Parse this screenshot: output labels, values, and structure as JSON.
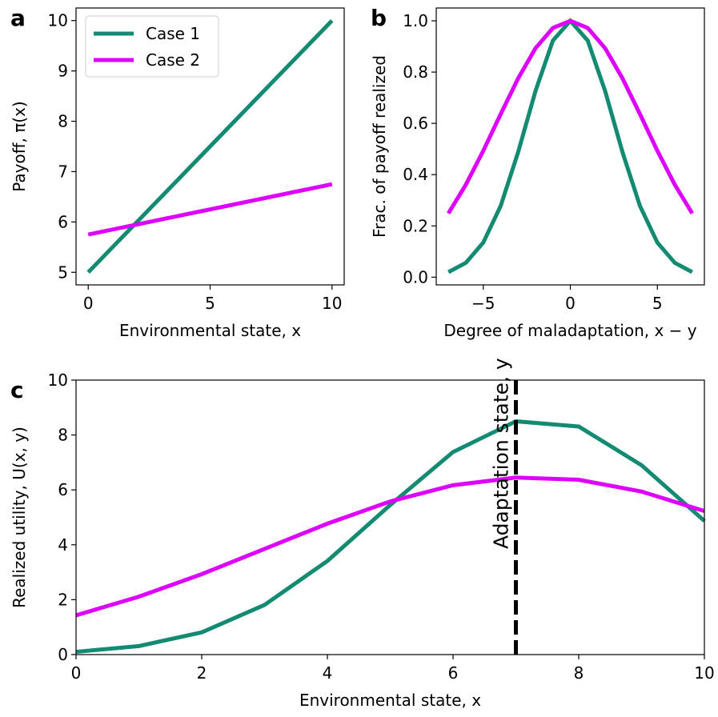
{
  "chart_data": [
    {
      "type": "line",
      "panel_label": "a",
      "xlabel": "Environmental state, x",
      "ylabel": "Payoff, π(x)",
      "x": [
        0,
        10
      ],
      "series": [
        {
          "name": "Case 1",
          "color": "#138a72",
          "values": [
            5,
            10
          ]
        },
        {
          "name": "Case 2",
          "color": "#dd00ff",
          "values": [
            5.75,
            6.75
          ]
        }
      ],
      "xlim": [
        -0.5,
        10.5
      ],
      "ylim": [
        4.75,
        10.25
      ],
      "xticks": [
        0,
        5,
        10
      ],
      "yticks": [
        5,
        6,
        7,
        8,
        9,
        10
      ],
      "legend": "upper left"
    },
    {
      "type": "line",
      "panel_label": "b",
      "xlabel": "Degree of maladaptation, x − y",
      "ylabel": "Frac. of payoff realized",
      "x": [
        -7,
        -6,
        -5,
        -4,
        -3,
        -2,
        -1,
        0,
        1,
        2,
        3,
        4,
        5,
        6,
        7
      ],
      "series": [
        {
          "color": "#138a72",
          "values": [
            0.02,
            0.056,
            0.135,
            0.278,
            0.487,
            0.726,
            0.923,
            1,
            0.923,
            0.726,
            0.487,
            0.278,
            0.135,
            0.056,
            0.02
          ]
        },
        {
          "color": "#dd00ff",
          "values": [
            0.249,
            0.361,
            0.493,
            0.636,
            0.775,
            0.893,
            0.972,
            1,
            0.972,
            0.893,
            0.775,
            0.636,
            0.493,
            0.361,
            0.249
          ]
        }
      ],
      "xlim": [
        -7.7,
        7.7
      ],
      "ylim": [
        -0.03,
        1.05
      ],
      "xticks": [
        {
          "value": -5,
          "label": "−5"
        },
        0,
        5
      ],
      "yticks": [
        {
          "value": 0,
          "label": "0.0"
        },
        0.2,
        0.4,
        0.6,
        0.8,
        {
          "value": 1,
          "label": "1.0"
        }
      ]
    },
    {
      "type": "line",
      "panel_label": "c",
      "xlabel": "Environmental state, x",
      "ylabel": "Realized utility, U(x, y)",
      "x": [
        0,
        1,
        2,
        3,
        4,
        5,
        6,
        7,
        8,
        9,
        10
      ],
      "series": [
        {
          "color": "#138a72",
          "values": [
            0.1,
            0.31,
            0.81,
            1.81,
            3.41,
            5.45,
            7.38,
            8.5,
            8.31,
            6.9,
            4.87
          ]
        },
        {
          "color": "#dd00ff",
          "values": [
            1.43,
            2.11,
            2.93,
            3.85,
            4.77,
            5.58,
            6.17,
            6.45,
            6.37,
            5.94,
            5.23
          ]
        }
      ],
      "xlim": [
        0,
        10
      ],
      "ylim": [
        0,
        10
      ],
      "xticks": [
        0,
        2,
        4,
        6,
        8,
        10
      ],
      "yticks": [
        0,
        2,
        4,
        6,
        8,
        10
      ],
      "vline": 7,
      "annotation": "Adaptation state, y"
    }
  ]
}
